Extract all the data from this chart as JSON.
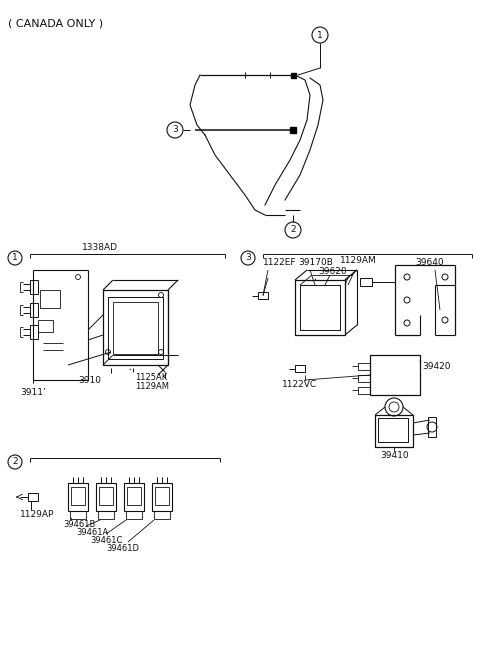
{
  "bg_color": "#ffffff",
  "title": "( CANADA ONLY )",
  "fig_width": 4.8,
  "fig_height": 6.57,
  "dpi": 100,
  "text_color": "#111111",
  "line_color": "#111111",
  "sections": {
    "section1_label": "1338AD",
    "section3_labels": [
      "1122EF",
      "39170B",
      "1129AM",
      "39640",
      "39620"
    ],
    "section1_parts": [
      "3911’",
      "3910",
      "1125AK",
      "1129AM"
    ],
    "section2_parts": [
      "1129AP",
      "39461B",
      "39461A",
      "39461C",
      "39461D"
    ],
    "section3_parts": [
      "1122VC",
      "39420",
      "39410"
    ]
  }
}
